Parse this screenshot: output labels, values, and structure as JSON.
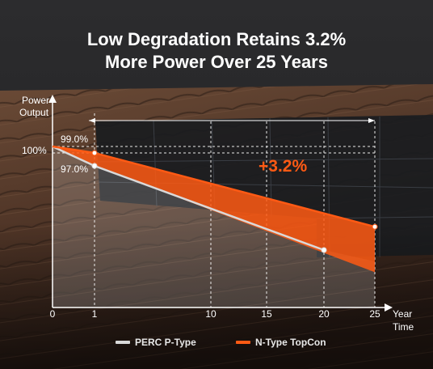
{
  "title_line1": "Low Degradation Retains 3.2%",
  "title_line2": "More Power Over 25 Years",
  "chart_data": {
    "type": "line",
    "ylabel_line1": "Power",
    "ylabel_line2": "Output",
    "xlabel_line1": "Year",
    "xlabel_line2": "Time",
    "x_ticks": [
      0,
      1,
      10,
      15,
      20,
      25
    ],
    "y_tick_label": "100%",
    "series": [
      {
        "name": "PERC P-Type",
        "color": "#d9d9d9",
        "x": [
          0,
          1,
          20
        ],
        "y": [
          100,
          97.0,
          84.0
        ]
      },
      {
        "name": "N-Type TopCon",
        "color": "#ff5a14",
        "x": [
          0,
          1,
          25
        ],
        "y": [
          100,
          99.0,
          87.6
        ]
      }
    ],
    "annotations": {
      "p1": "99.0%",
      "p2": "97.0%",
      "gap": "+3.2%"
    }
  }
}
